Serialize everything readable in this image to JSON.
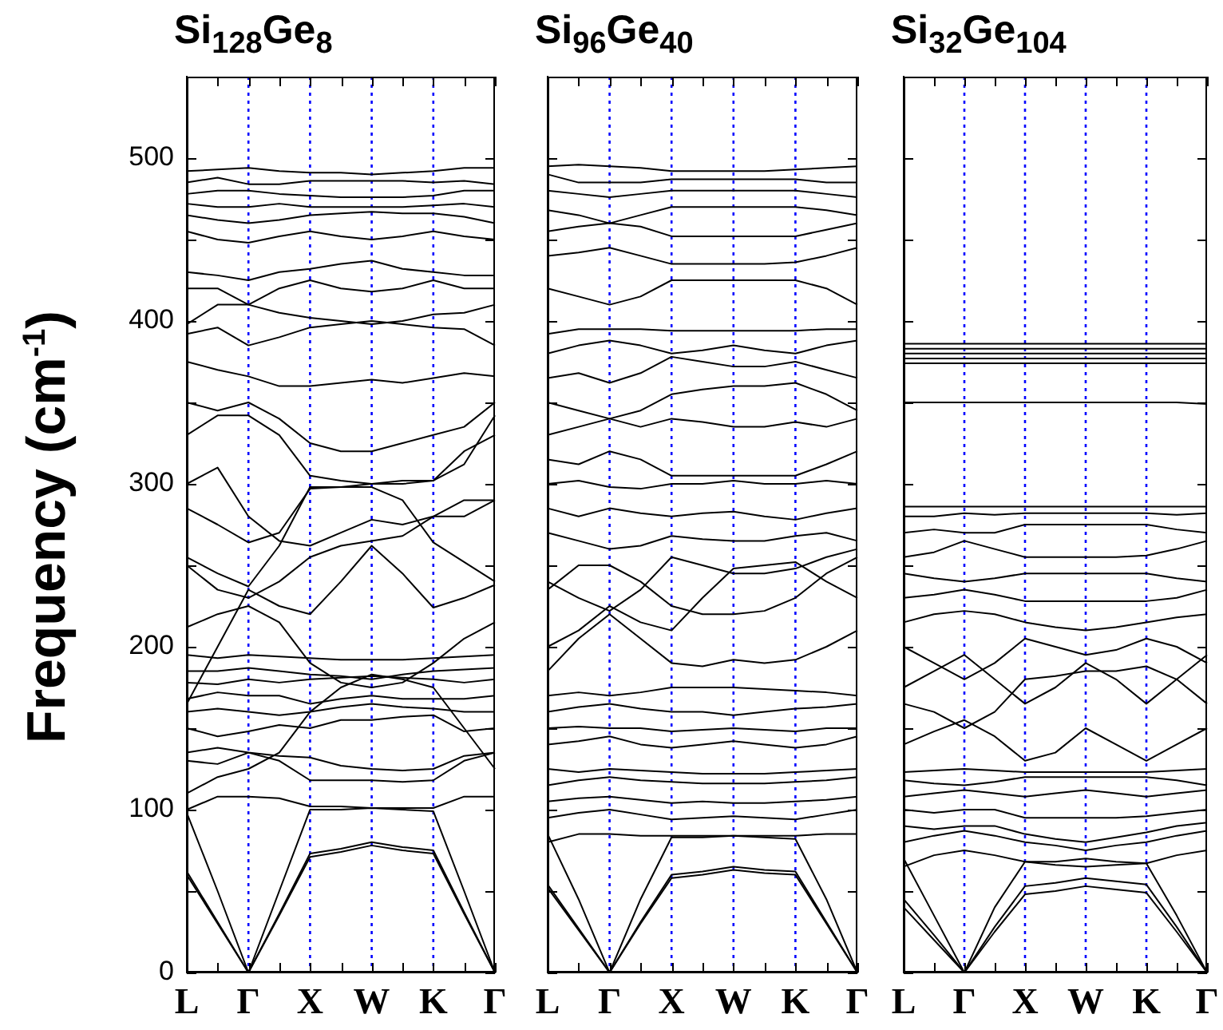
{
  "chart_data": [
    {
      "type": "line",
      "title": "Si$_{128}$Ge$_{8}$",
      "ylabel": "Frequency (cm$^{-1}$)",
      "legend": false,
      "grid": false,
      "marker": "none",
      "line_style": "solid",
      "categories": [
        "L",
        null,
        "Γ",
        null,
        "X",
        null,
        "W",
        null,
        "K",
        null,
        "Γ"
      ],
      "ylim": [
        0,
        550
      ],
      "yticks": [
        0,
        {
          "value": 50,
          "label": null
        },
        100,
        {
          "value": 150,
          "label": null
        },
        200,
        {
          "value": 250,
          "label": null
        },
        300,
        {
          "value": 350,
          "label": null
        },
        400,
        {
          "value": 450,
          "label": null
        },
        500
      ],
      "ref_lines": [
        {
          "axis": "x",
          "value": "Γ",
          "color": "#0000ff",
          "line_style": "dotted"
        },
        {
          "axis": "x",
          "value": "X",
          "color": "#0000ff",
          "line_style": "dotted"
        },
        {
          "axis": "x",
          "value": "W",
          "color": "#0000ff",
          "line_style": "dotted"
        },
        {
          "axis": "x",
          "value": "K",
          "color": "#0000ff",
          "line_style": "dotted"
        }
      ],
      "series": [
        {
          "color": "#000000",
          "values": [
            60,
            30,
            0,
            35,
            71,
            74,
            78,
            75,
            73,
            36,
            0
          ]
        },
        {
          "color": "#000000",
          "values": [
            62,
            31,
            0,
            36,
            73,
            76,
            80,
            77,
            75,
            37,
            0
          ]
        },
        {
          "color": "#000000",
          "values": [
            98,
            50,
            0,
            50,
            100,
            100,
            101,
            100,
            99,
            50,
            0
          ]
        },
        {
          "color": "#000000",
          "values": [
            100,
            108,
            108,
            107,
            102,
            102,
            101,
            101,
            101,
            108,
            108
          ]
        },
        {
          "color": "#000000",
          "values": [
            130,
            128,
            135,
            130,
            118,
            118,
            118,
            117,
            118,
            130,
            135
          ]
        },
        {
          "color": "#000000",
          "values": [
            135,
            138,
            135,
            133,
            132,
            127,
            125,
            124,
            125,
            133,
            135
          ]
        },
        {
          "color": "#000000",
          "values": [
            150,
            145,
            148,
            152,
            150,
            155,
            155,
            157,
            158,
            148,
            150
          ]
        },
        {
          "color": "#000000",
          "values": [
            160,
            162,
            160,
            158,
            160,
            163,
            165,
            163,
            162,
            160,
            160
          ]
        },
        {
          "color": "#000000",
          "values": [
            168,
            172,
            170,
            170,
            165,
            168,
            170,
            168,
            168,
            168,
            170
          ]
        },
        {
          "color": "#000000",
          "values": [
            178,
            177,
            180,
            178,
            180,
            181,
            182,
            181,
            180,
            178,
            180
          ]
        },
        {
          "color": "#000000",
          "values": [
            185,
            185,
            187,
            185,
            183,
            182,
            180,
            183,
            185,
            186,
            187
          ]
        },
        {
          "color": "#000000",
          "values": [
            195,
            193,
            195,
            194,
            193,
            192,
            192,
            192,
            193,
            194,
            195
          ]
        },
        {
          "color": "#000000",
          "values": [
            165,
            200,
            235,
            225,
            220,
            240,
            262,
            245,
            224,
            230,
            238
          ]
        },
        {
          "color": "#000000",
          "values": [
            255,
            245,
            237,
            262,
            298,
            298,
            298,
            290,
            264,
            252,
            240
          ]
        },
        {
          "color": "#000000",
          "values": [
            250,
            235,
            230,
            240,
            255,
            262,
            265,
            268,
            280,
            280,
            290
          ]
        },
        {
          "color": "#000000",
          "values": [
            285,
            275,
            264,
            270,
            297,
            298,
            300,
            300,
            302,
            320,
            330
          ]
        },
        {
          "color": "#000000",
          "values": [
            300,
            310,
            280,
            265,
            262,
            270,
            278,
            275,
            280,
            290,
            290
          ]
        },
        {
          "color": "#000000",
          "values": [
            330,
            342,
            342,
            330,
            305,
            302,
            300,
            302,
            302,
            312,
            342
          ]
        },
        {
          "color": "#000000",
          "values": [
            350,
            345,
            350,
            340,
            325,
            320,
            320,
            325,
            330,
            335,
            350
          ]
        },
        {
          "color": "#000000",
          "values": [
            375,
            370,
            366,
            360,
            360,
            362,
            364,
            362,
            365,
            368,
            366
          ]
        },
        {
          "color": "#000000",
          "values": [
            392,
            396,
            385,
            390,
            396,
            398,
            400,
            398,
            396,
            395,
            385
          ]
        },
        {
          "color": "#000000",
          "values": [
            398,
            410,
            410,
            405,
            402,
            400,
            398,
            400,
            404,
            405,
            410
          ]
        },
        {
          "color": "#000000",
          "values": [
            420,
            420,
            410,
            420,
            425,
            420,
            418,
            420,
            425,
            420,
            420
          ]
        },
        {
          "color": "#000000",
          "values": [
            430,
            428,
            425,
            430,
            432,
            435,
            437,
            432,
            430,
            428,
            428
          ]
        },
        {
          "color": "#000000",
          "values": [
            455,
            450,
            448,
            452,
            455,
            452,
            450,
            452,
            455,
            452,
            450
          ]
        },
        {
          "color": "#000000",
          "values": [
            465,
            462,
            460,
            462,
            465,
            466,
            467,
            466,
            466,
            464,
            460
          ]
        },
        {
          "color": "#000000",
          "values": [
            472,
            470,
            470,
            472,
            470,
            470,
            470,
            470,
            471,
            472,
            470
          ]
        },
        {
          "color": "#000000",
          "values": [
            478,
            480,
            480,
            478,
            477,
            476,
            476,
            476,
            477,
            480,
            480
          ]
        },
        {
          "color": "#000000",
          "values": [
            485,
            488,
            484,
            484,
            486,
            486,
            486,
            486,
            485,
            486,
            484
          ]
        },
        {
          "color": "#000000",
          "values": [
            492,
            493,
            494,
            492,
            491,
            491,
            490,
            491,
            492,
            494,
            494
          ]
        },
        {
          "color": "#000000",
          "values": [
            212,
            220,
            225,
            215,
            190,
            178,
            175,
            178,
            190,
            205,
            215
          ]
        },
        {
          "color": "#000000",
          "values": [
            110,
            120,
            125,
            135,
            160,
            175,
            183,
            180,
            175,
            150,
            125
          ]
        }
      ]
    },
    {
      "type": "line",
      "title": "Si$_{96}$Ge$_{40}$",
      "legend": false,
      "grid": false,
      "marker": "none",
      "line_style": "solid",
      "tick_labels": "x",
      "categories": [
        "L",
        null,
        "Γ",
        null,
        "X",
        null,
        "W",
        null,
        "K",
        null,
        "Γ"
      ],
      "ylim": [
        0,
        550
      ],
      "yticks": [
        0,
        {
          "value": 50,
          "label": null
        },
        100,
        {
          "value": 150,
          "label": null
        },
        200,
        {
          "value": 250,
          "label": null
        },
        300,
        {
          "value": 350,
          "label": null
        },
        400,
        {
          "value": 450,
          "label": null
        },
        500
      ],
      "ref_lines": [
        {
          "axis": "x",
          "value": "Γ",
          "color": "#0000ff",
          "line_style": "dotted"
        },
        {
          "axis": "x",
          "value": "X",
          "color": "#0000ff",
          "line_style": "dotted"
        },
        {
          "axis": "x",
          "value": "W",
          "color": "#0000ff",
          "line_style": "dotted"
        },
        {
          "axis": "x",
          "value": "K",
          "color": "#0000ff",
          "line_style": "dotted"
        }
      ],
      "series": [
        {
          "color": "#000000",
          "values": [
            52,
            26,
            0,
            30,
            58,
            60,
            63,
            61,
            60,
            30,
            0
          ]
        },
        {
          "color": "#000000",
          "values": [
            54,
            27,
            0,
            31,
            60,
            62,
            65,
            63,
            62,
            31,
            0
          ]
        },
        {
          "color": "#000000",
          "values": [
            85,
            45,
            0,
            45,
            83,
            83,
            84,
            83,
            82,
            45,
            0
          ]
        },
        {
          "color": "#000000",
          "values": [
            80,
            85,
            85,
            84,
            84,
            84,
            84,
            84,
            84,
            85,
            85
          ]
        },
        {
          "color": "#000000",
          "values": [
            95,
            98,
            100,
            97,
            94,
            95,
            96,
            95,
            94,
            97,
            100
          ]
        },
        {
          "color": "#000000",
          "values": [
            105,
            107,
            108,
            106,
            104,
            105,
            104,
            104,
            105,
            106,
            108
          ]
        },
        {
          "color": "#000000",
          "values": [
            115,
            118,
            120,
            118,
            117,
            116,
            116,
            116,
            117,
            118,
            120
          ]
        },
        {
          "color": "#000000",
          "values": [
            125,
            123,
            125,
            124,
            123,
            122,
            122,
            122,
            123,
            124,
            125
          ]
        },
        {
          "color": "#000000",
          "values": [
            140,
            142,
            145,
            140,
            138,
            140,
            142,
            140,
            138,
            140,
            145
          ]
        },
        {
          "color": "#000000",
          "values": [
            150,
            151,
            150,
            150,
            148,
            149,
            150,
            149,
            148,
            150,
            150
          ]
        },
        {
          "color": "#000000",
          "values": [
            160,
            163,
            165,
            162,
            160,
            160,
            158,
            160,
            162,
            163,
            165
          ]
        },
        {
          "color": "#000000",
          "values": [
            170,
            172,
            170,
            172,
            175,
            175,
            175,
            174,
            173,
            172,
            170
          ]
        },
        {
          "color": "#000000",
          "values": [
            185,
            205,
            220,
            205,
            190,
            188,
            192,
            190,
            192,
            200,
            210
          ]
        },
        {
          "color": "#000000",
          "values": [
            200,
            210,
            225,
            215,
            210,
            230,
            248,
            250,
            252,
            240,
            230
          ]
        },
        {
          "color": "#000000",
          "values": [
            240,
            230,
            222,
            235,
            255,
            250,
            245,
            245,
            248,
            255,
            260
          ]
        },
        {
          "color": "#000000",
          "values": [
            270,
            265,
            260,
            262,
            268,
            266,
            265,
            265,
            268,
            270,
            265
          ]
        },
        {
          "color": "#000000",
          "values": [
            285,
            280,
            285,
            282,
            280,
            282,
            283,
            280,
            278,
            282,
            285
          ]
        },
        {
          "color": "#000000",
          "values": [
            300,
            302,
            298,
            297,
            300,
            300,
            302,
            300,
            300,
            302,
            300
          ]
        },
        {
          "color": "#000000",
          "values": [
            315,
            312,
            320,
            315,
            305,
            305,
            305,
            305,
            305,
            312,
            320
          ]
        },
        {
          "color": "#000000",
          "values": [
            330,
            335,
            340,
            335,
            340,
            338,
            335,
            335,
            338,
            335,
            340
          ]
        },
        {
          "color": "#000000",
          "values": [
            350,
            345,
            340,
            345,
            355,
            358,
            360,
            360,
            362,
            355,
            345
          ]
        },
        {
          "color": "#000000",
          "values": [
            365,
            368,
            362,
            368,
            378,
            375,
            372,
            372,
            375,
            370,
            365
          ]
        },
        {
          "color": "#000000",
          "values": [
            380,
            385,
            388,
            385,
            380,
            382,
            385,
            382,
            380,
            385,
            388
          ]
        },
        {
          "color": "#000000",
          "values": [
            392,
            395,
            395,
            395,
            394,
            394,
            394,
            394,
            394,
            395,
            395
          ]
        },
        {
          "color": "#000000",
          "values": [
            420,
            415,
            410,
            415,
            425,
            425,
            425,
            425,
            425,
            420,
            410
          ]
        },
        {
          "color": "#000000",
          "values": [
            440,
            442,
            445,
            440,
            435,
            435,
            435,
            435,
            436,
            440,
            445
          ]
        },
        {
          "color": "#000000",
          "values": [
            455,
            458,
            460,
            458,
            452,
            452,
            452,
            452,
            452,
            456,
            460
          ]
        },
        {
          "color": "#000000",
          "values": [
            468,
            465,
            460,
            465,
            470,
            470,
            470,
            470,
            470,
            468,
            465
          ]
        },
        {
          "color": "#000000",
          "values": [
            480,
            478,
            476,
            478,
            480,
            480,
            480,
            480,
            480,
            478,
            476
          ]
        },
        {
          "color": "#000000",
          "values": [
            490,
            485,
            485,
            485,
            487,
            487,
            487,
            487,
            487,
            485,
            485
          ]
        },
        {
          "color": "#000000",
          "values": [
            495,
            496,
            495,
            494,
            492,
            492,
            492,
            492,
            493,
            494,
            495
          ]
        },
        {
          "color": "#000000",
          "values": [
            235,
            250,
            250,
            240,
            225,
            220,
            220,
            222,
            230,
            245,
            255
          ]
        }
      ]
    },
    {
      "type": "line",
      "title": "Si$_{32}$Ge$_{104}$",
      "legend": false,
      "grid": false,
      "marker": "none",
      "line_style": "solid",
      "tick_labels": "x",
      "categories": [
        "L",
        null,
        "Γ",
        null,
        "X",
        null,
        "W",
        null,
        "K",
        null,
        "Γ"
      ],
      "ylim": [
        0,
        550
      ],
      "yticks": [
        0,
        {
          "value": 50,
          "label": null
        },
        100,
        {
          "value": 150,
          "label": null
        },
        200,
        {
          "value": 250,
          "label": null
        },
        300,
        {
          "value": 350,
          "label": null
        },
        400,
        {
          "value": 450,
          "label": null
        },
        500
      ],
      "ref_lines": [
        {
          "axis": "x",
          "value": "Γ",
          "color": "#0000ff",
          "line_style": "dotted"
        },
        {
          "axis": "x",
          "value": "X",
          "color": "#0000ff",
          "line_style": "dotted"
        },
        {
          "axis": "x",
          "value": "W",
          "color": "#0000ff",
          "line_style": "dotted"
        },
        {
          "axis": "x",
          "value": "K",
          "color": "#0000ff",
          "line_style": "dotted"
        }
      ],
      "series": [
        {
          "color": "#000000",
          "values": [
            40,
            20,
            0,
            25,
            48,
            50,
            53,
            51,
            49,
            25,
            0
          ]
        },
        {
          "color": "#000000",
          "values": [
            45,
            23,
            0,
            28,
            53,
            55,
            58,
            56,
            54,
            28,
            0
          ]
        },
        {
          "color": "#000000",
          "values": [
            70,
            35,
            0,
            40,
            68,
            68,
            70,
            68,
            67,
            35,
            0
          ]
        },
        {
          "color": "#000000",
          "values": [
            65,
            72,
            75,
            72,
            68,
            66,
            65,
            66,
            67,
            72,
            75
          ]
        },
        {
          "color": "#000000",
          "values": [
            80,
            84,
            87,
            84,
            80,
            78,
            75,
            78,
            80,
            84,
            87
          ]
        },
        {
          "color": "#000000",
          "values": [
            90,
            88,
            90,
            90,
            85,
            82,
            80,
            83,
            86,
            90,
            92
          ]
        },
        {
          "color": "#000000",
          "values": [
            100,
            98,
            100,
            100,
            95,
            95,
            95,
            95,
            96,
            98,
            100
          ]
        },
        {
          "color": "#000000",
          "values": [
            108,
            110,
            112,
            110,
            108,
            110,
            112,
            110,
            108,
            110,
            112
          ]
        },
        {
          "color": "#000000",
          "values": [
            118,
            116,
            115,
            117,
            120,
            120,
            120,
            120,
            120,
            118,
            115
          ]
        },
        {
          "color": "#000000",
          "values": [
            123,
            124,
            125,
            124,
            123,
            123,
            123,
            123,
            123,
            124,
            125
          ]
        },
        {
          "color": "#000000",
          "values": [
            140,
            148,
            155,
            145,
            130,
            135,
            150,
            140,
            130,
            140,
            150
          ]
        },
        {
          "color": "#000000",
          "values": [
            165,
            160,
            150,
            160,
            180,
            182,
            185,
            185,
            188,
            180,
            165
          ]
        },
        {
          "color": "#000000",
          "values": [
            175,
            185,
            195,
            180,
            165,
            175,
            190,
            180,
            165,
            180,
            195
          ]
        },
        {
          "color": "#000000",
          "values": [
            200,
            190,
            180,
            190,
            205,
            200,
            195,
            198,
            205,
            200,
            190
          ]
        },
        {
          "color": "#000000",
          "values": [
            215,
            220,
            222,
            220,
            215,
            212,
            210,
            212,
            215,
            218,
            220
          ]
        },
        {
          "color": "#000000",
          "values": [
            230,
            232,
            235,
            232,
            228,
            228,
            228,
            228,
            228,
            230,
            235
          ]
        },
        {
          "color": "#000000",
          "values": [
            245,
            242,
            240,
            242,
            245,
            245,
            245,
            245,
            245,
            242,
            240
          ]
        },
        {
          "color": "#000000",
          "values": [
            255,
            258,
            265,
            260,
            255,
            255,
            255,
            255,
            256,
            260,
            265
          ]
        },
        {
          "color": "#000000",
          "values": [
            270,
            272,
            270,
            270,
            275,
            275,
            275,
            275,
            275,
            272,
            270
          ]
        },
        {
          "color": "#000000",
          "values": [
            280,
            280,
            282,
            281,
            282,
            282,
            282,
            282,
            282,
            281,
            282
          ]
        },
        {
          "color": "#000000",
          "values": [
            286,
            286,
            286,
            286,
            286,
            286,
            286,
            286,
            286,
            286,
            286
          ]
        },
        {
          "color": "#000000",
          "values": [
            350,
            350,
            350,
            350,
            350,
            350,
            350,
            350,
            350,
            350,
            349
          ]
        },
        {
          "color": "#000000",
          "values": [
            374,
            374,
            374,
            374,
            374,
            374,
            374,
            374,
            374,
            374,
            374
          ]
        },
        {
          "color": "#000000",
          "values": [
            377,
            377,
            377,
            377,
            377,
            377,
            377,
            377,
            377,
            377,
            377
          ]
        },
        {
          "color": "#000000",
          "values": [
            380,
            380,
            380,
            380,
            380,
            380,
            380,
            380,
            380,
            380,
            380
          ]
        },
        {
          "color": "#000000",
          "values": [
            383,
            383,
            383,
            383,
            383,
            383,
            383,
            383,
            383,
            383,
            383
          ]
        },
        {
          "color": "#000000",
          "values": [
            386,
            386,
            386,
            386,
            386,
            386,
            386,
            386,
            386,
            386,
            386
          ]
        }
      ]
    }
  ]
}
